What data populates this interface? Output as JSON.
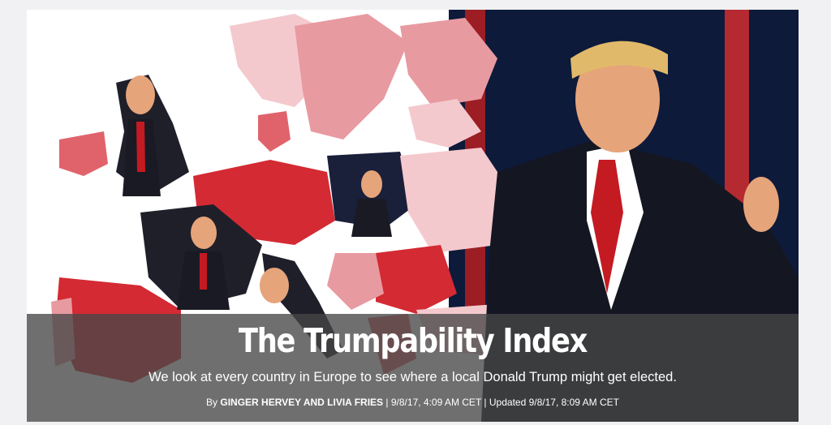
{
  "article": {
    "title": "The Trumpability Index",
    "subtitle": "We look at every country in Europe to see where a local Donald Trump might get elected.",
    "byline_prefix": "By",
    "authors": "GINGER HERVEY AND LIVIA FRIES",
    "published": "9/8/17, 4:09 AM CET",
    "updated_label": "Updated",
    "updated": "9/8/17, 8:09 AM CET"
  },
  "hero_image": {
    "subject": "Europe map shaded by Trumpability with Donald Trump cutouts",
    "colors": {
      "lowest": "#f4c9cd",
      "low": "#e89aa1",
      "medium": "#e0636c",
      "high": "#d42a33",
      "highest": "#a8141c",
      "background": "#ffffff",
      "band": "#464646"
    }
  }
}
